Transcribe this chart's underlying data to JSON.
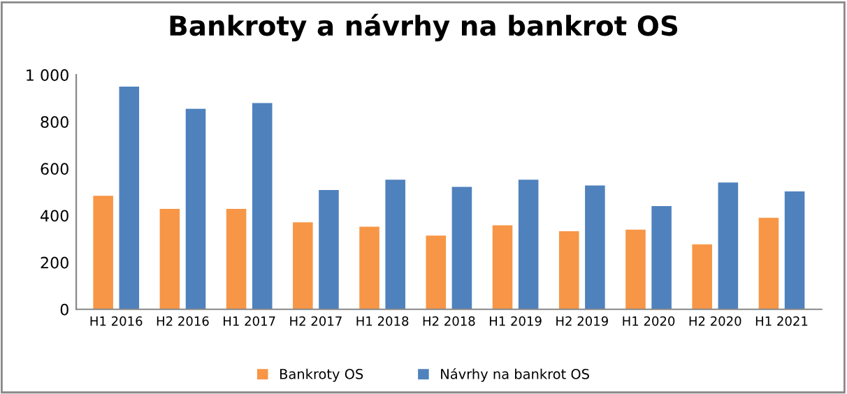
{
  "chart_data": {
    "type": "bar",
    "title": "Bankroty a návrhy na bankrot OS",
    "categories": [
      "H1 2016",
      "H2 2016",
      "H1 2017",
      "H2 2017",
      "H1 2018",
      "H2 2018",
      "H1 2019",
      "H2 2019",
      "H1 2020",
      "H2 2020",
      "H1 2021"
    ],
    "series": [
      {
        "name": "Bankroty OS",
        "color": "#f79646",
        "values": [
          484,
          428,
          428,
          371,
          352,
          314,
          358,
          333,
          340,
          277,
          390
        ]
      },
      {
        "name": "Návrhy na bankrot OS",
        "color": "#4f81bd",
        "values": [
          950,
          855,
          880,
          509,
          553,
          522,
          553,
          528,
          440,
          541,
          503
        ]
      }
    ],
    "ylim": [
      0,
      1000
    ],
    "yticks": [
      0,
      200,
      400,
      600,
      800,
      {
        "value": 1000,
        "label": "1 000"
      }
    ],
    "grid": false,
    "legend": "bottom"
  }
}
